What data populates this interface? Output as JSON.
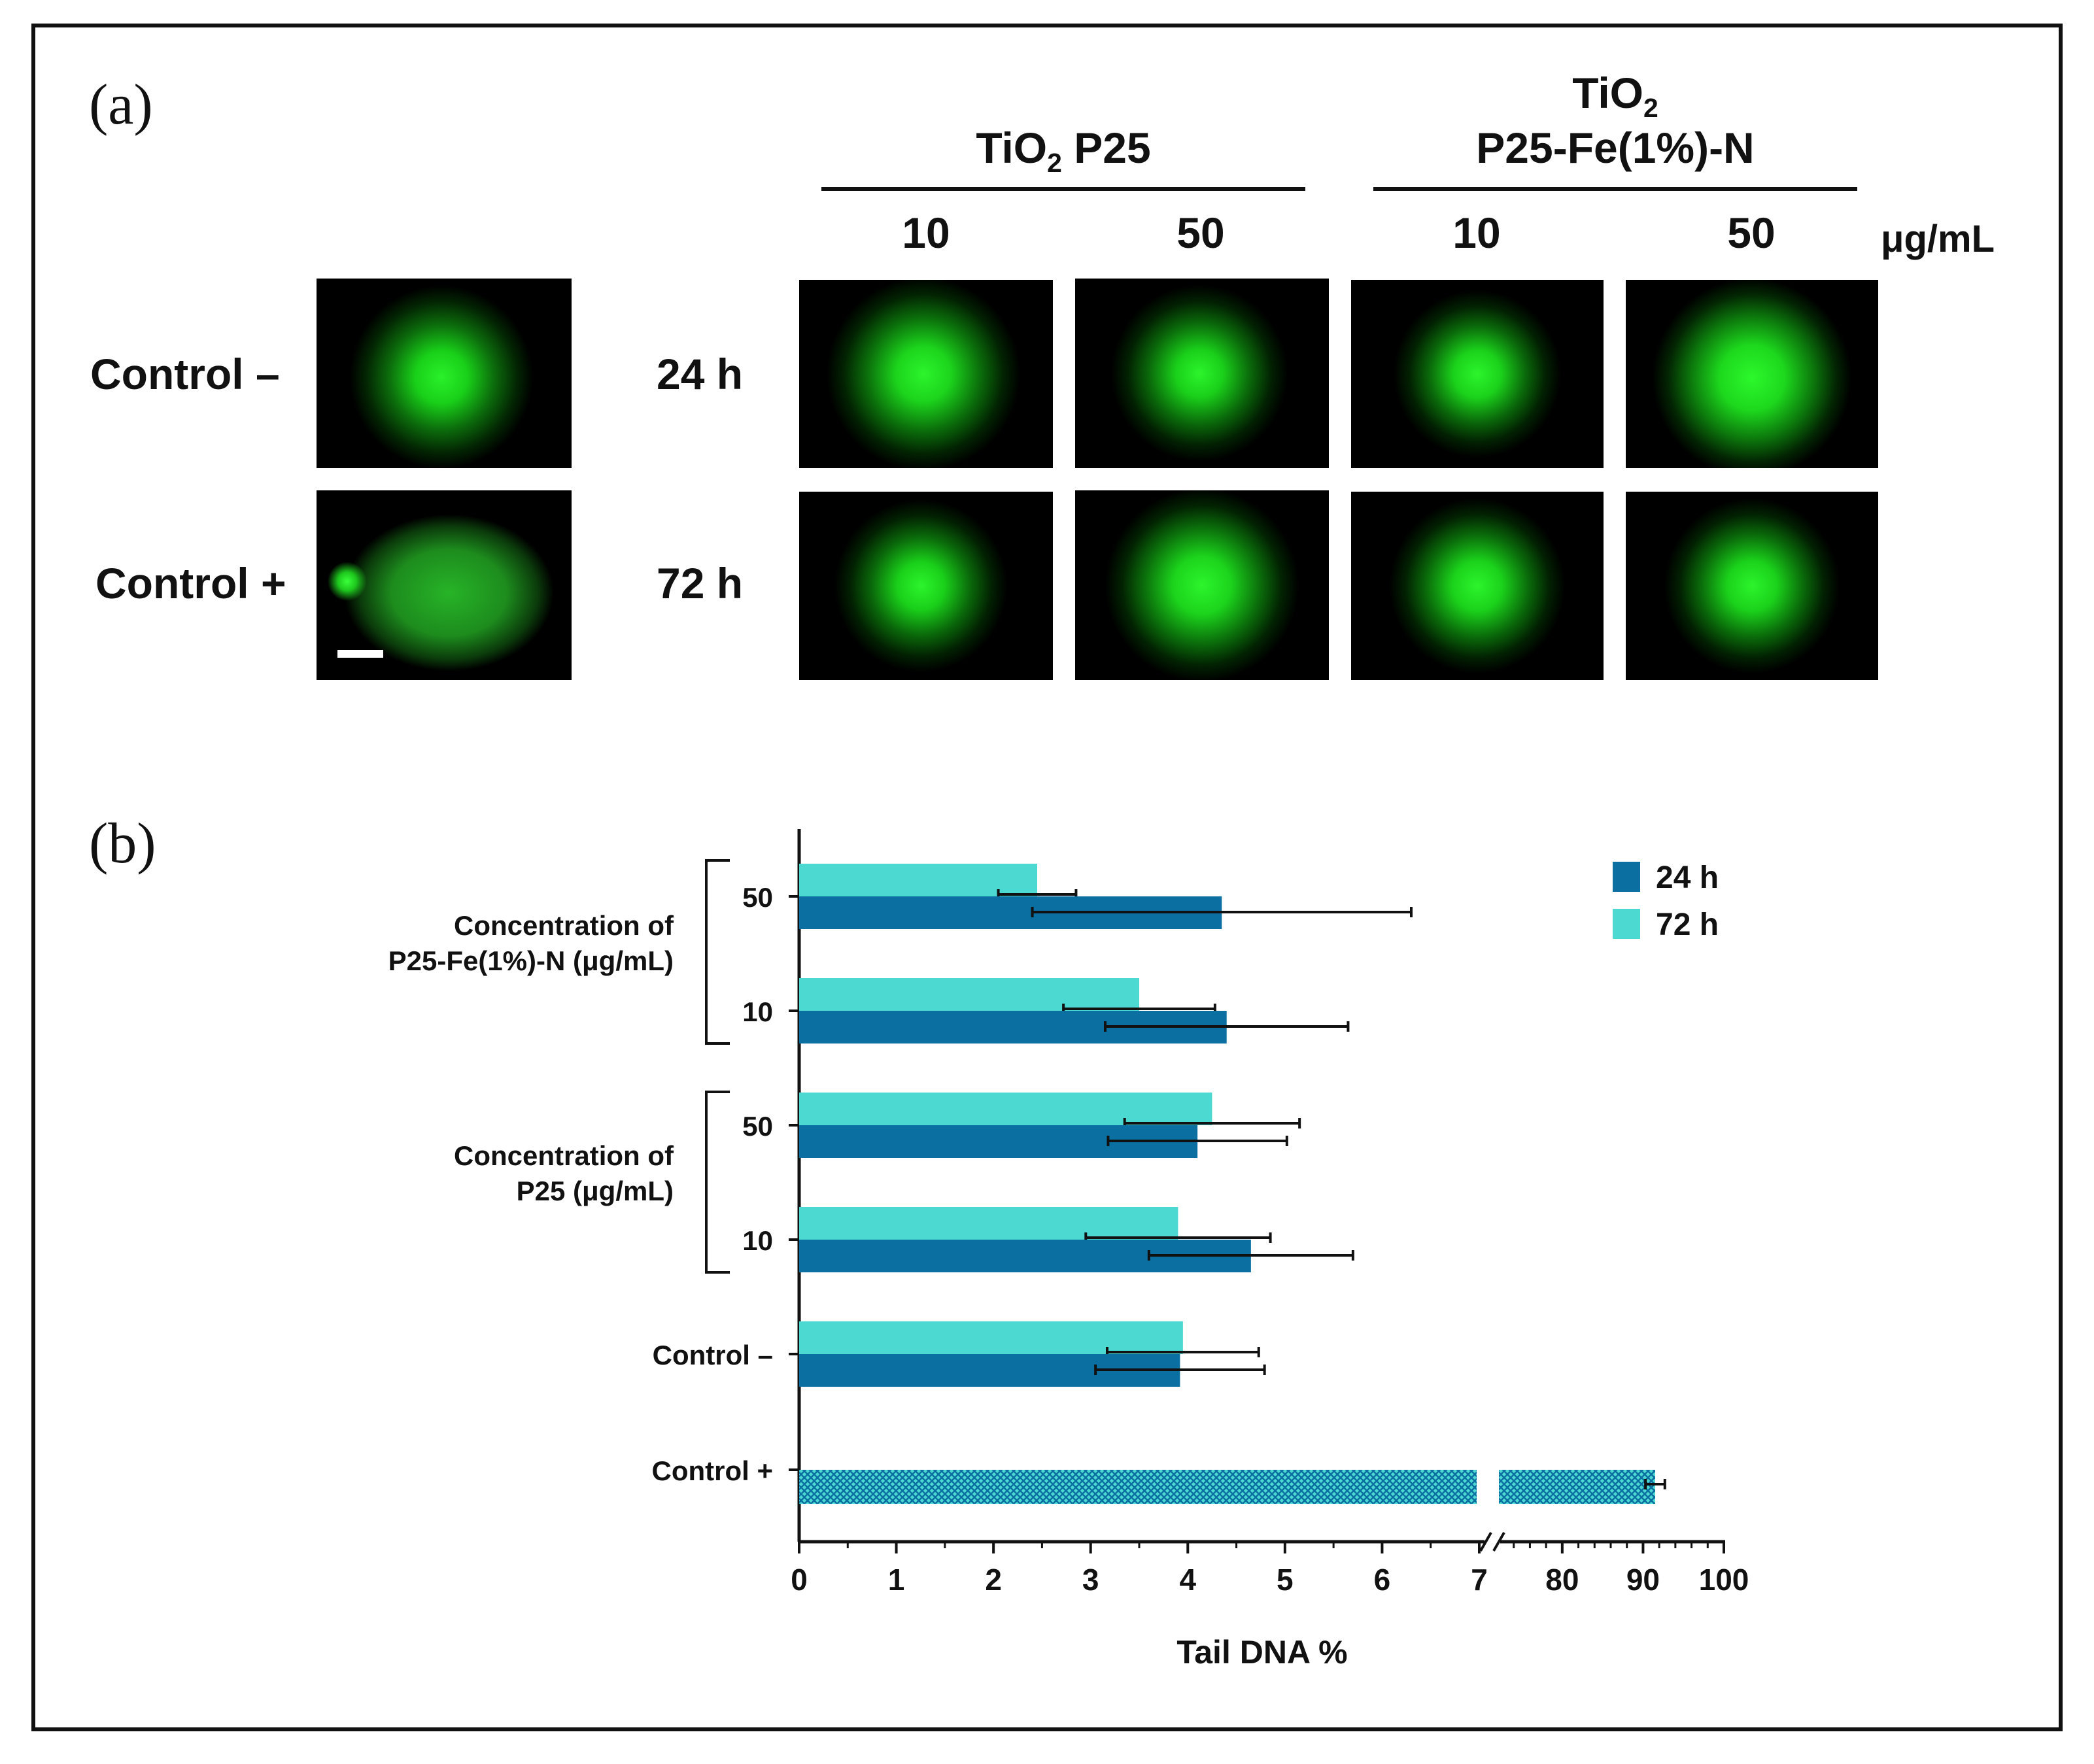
{
  "panel_a": {
    "label": "(a)",
    "group1": {
      "base": "TiO",
      "sub": "2",
      "rest": " P25"
    },
    "group2": {
      "line1_base": "TiO",
      "line1_sub": "2",
      "line2": "P25-Fe(1%)-N"
    },
    "concentrations": [
      "10",
      "50",
      "10",
      "50"
    ],
    "unit": "μg/mL",
    "controls": [
      "Control –",
      "Control +"
    ],
    "times": [
      "24 h",
      "72 h"
    ],
    "colors": {
      "nucleus": "#22e822",
      "background": "#000000",
      "scale_bar": "#ffffff"
    }
  },
  "panel_b": {
    "label": "(b)"
  },
  "chart_data": {
    "type": "bar",
    "orientation": "horizontal",
    "xlabel": "Tail DNA %",
    "categories": [
      "50",
      "10",
      "50",
      "10",
      "Control –",
      "Control +"
    ],
    "group_labels": [
      {
        "text_lines": [
          "Concentration of",
          "P25-Fe(1%)-N (μg/mL)"
        ],
        "categories": [
          0,
          1
        ]
      },
      {
        "text_lines": [
          "Concentration of",
          "P25 (μg/mL)"
        ],
        "categories": [
          2,
          3
        ]
      }
    ],
    "series": [
      {
        "name": "24 h",
        "color": "#0b6fa1",
        "values": [
          4.35,
          4.4,
          4.1,
          4.65,
          3.92,
          null
        ],
        "errors": [
          1.95,
          1.25,
          0.92,
          1.05,
          0.87,
          null
        ]
      },
      {
        "name": "72 h",
        "color": "#4cd9d2",
        "values": [
          2.45,
          3.5,
          4.25,
          3.9,
          3.95,
          null
        ],
        "errors": [
          0.4,
          0.78,
          0.9,
          0.95,
          0.78,
          null
        ]
      }
    ],
    "combined": {
      "category": "Control +",
      "value": 91.5,
      "error": 1.2,
      "pattern": "crosshatch",
      "colors": [
        "#0b6fa1",
        "#4cd9d2"
      ]
    },
    "x_axis": {
      "segment1": {
        "range": [
          0,
          7
        ],
        "ticks": [
          "0",
          "1",
          "2",
          "3",
          "4",
          "5",
          "6",
          "7"
        ]
      },
      "segment2": {
        "range": [
          72,
          100
        ],
        "ticks": [
          "80",
          "90",
          "100"
        ],
        "tick_values": [
          80,
          90,
          100
        ]
      },
      "break": true
    },
    "legend": {
      "position": "top-right"
    }
  }
}
